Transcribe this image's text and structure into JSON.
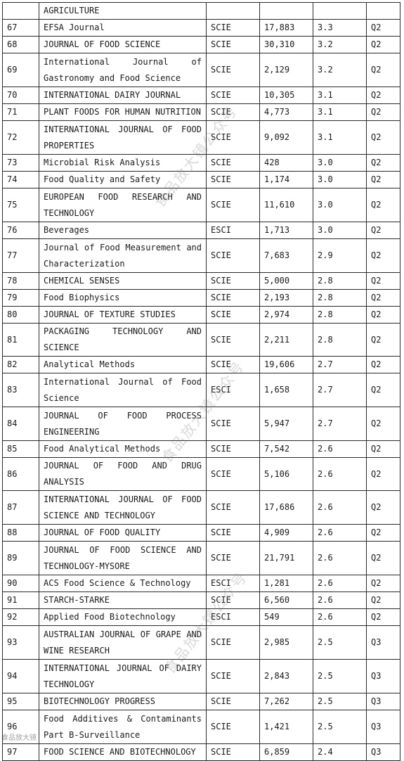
{
  "rows": [
    {
      "rank": "",
      "name": "AGRICULTURE",
      "index": "",
      "cites": "",
      "if": "",
      "q": "",
      "lines": 1
    },
    {
      "rank": "67",
      "name": "EFSA Journal",
      "index": "SCIE",
      "cites": "17,883",
      "if": "3.3",
      "q": "Q2",
      "lines": 1
    },
    {
      "rank": "68",
      "name": "JOURNAL OF FOOD SCIENCE",
      "index": "SCIE",
      "cites": "30,310",
      "if": "3.2",
      "q": "Q2",
      "lines": 1
    },
    {
      "rank": "69",
      "name": "International Journal of Gastronomy and Food Science",
      "index": "SCIE",
      "cites": "2,129",
      "if": "3.2",
      "q": "Q2",
      "lines": 2
    },
    {
      "rank": "70",
      "name": "INTERNATIONAL DAIRY JOURNAL",
      "index": "SCIE",
      "cites": "10,305",
      "if": "3.1",
      "q": "Q2",
      "lines": 1
    },
    {
      "rank": "71",
      "name": "PLANT FOODS FOR HUMAN NUTRITION",
      "index": "SCIE",
      "cites": "4,773",
      "if": "3.1",
      "q": "Q2",
      "lines": 1
    },
    {
      "rank": "72",
      "name": "INTERNATIONAL JOURNAL OF FOOD PROPERTIES",
      "index": "SCIE",
      "cites": "9,092",
      "if": "3.1",
      "q": "Q2",
      "lines": 2
    },
    {
      "rank": "73",
      "name": "Microbial Risk Analysis",
      "index": "SCIE",
      "cites": "428",
      "if": "3.0",
      "q": "Q2",
      "lines": 1
    },
    {
      "rank": "74",
      "name": "Food Quality and Safety",
      "index": "SCIE",
      "cites": "1,174",
      "if": "3.0",
      "q": "Q2",
      "lines": 1
    },
    {
      "rank": "75",
      "name": "EUROPEAN FOOD RESEARCH AND TECHNOLOGY",
      "index": "SCIE",
      "cites": "11,610",
      "if": "3.0",
      "q": "Q2",
      "lines": 2
    },
    {
      "rank": "76",
      "name": "Beverages",
      "index": "ESCI",
      "cites": "1,713",
      "if": "3.0",
      "q": "Q2",
      "lines": 1
    },
    {
      "rank": "77",
      "name": "Journal of Food Measurement and Characterization",
      "index": "SCIE",
      "cites": "7,683",
      "if": "2.9",
      "q": "Q2",
      "lines": 2
    },
    {
      "rank": "78",
      "name": "CHEMICAL SENSES",
      "index": "SCIE",
      "cites": "5,000",
      "if": "2.8",
      "q": "Q2",
      "lines": 1
    },
    {
      "rank": "79",
      "name": "Food Biophysics",
      "index": "SCIE",
      "cites": "2,193",
      "if": "2.8",
      "q": "Q2",
      "lines": 1
    },
    {
      "rank": "80",
      "name": "JOURNAL OF TEXTURE STUDIES",
      "index": "SCIE",
      "cites": "2,974",
      "if": "2.8",
      "q": "Q2",
      "lines": 1
    },
    {
      "rank": "81",
      "name": "PACKAGING TECHNOLOGY AND SCIENCE",
      "index": "SCIE",
      "cites": "2,211",
      "if": "2.8",
      "q": "Q2",
      "lines": 1
    },
    {
      "rank": "82",
      "name": "Analytical Methods",
      "index": "SCIE",
      "cites": "19,606",
      "if": "2.7",
      "q": "Q2",
      "lines": 1
    },
    {
      "rank": "83",
      "name": "International Journal of Food Science",
      "index": "ESCI",
      "cites": "1,658",
      "if": "2.7",
      "q": "Q2",
      "lines": 2
    },
    {
      "rank": "84",
      "name": "JOURNAL OF FOOD PROCESS ENGINEERING",
      "index": "SCIE",
      "cites": "5,947",
      "if": "2.7",
      "q": "Q2",
      "lines": 2
    },
    {
      "rank": "85",
      "name": "Food Analytical Methods",
      "index": "SCIE",
      "cites": "7,542",
      "if": "2.6",
      "q": "Q2",
      "lines": 1
    },
    {
      "rank": "86",
      "name": "JOURNAL OF FOOD AND DRUG ANALYSIS",
      "index": "SCIE",
      "cites": "5,106",
      "if": "2.6",
      "q": "Q2",
      "lines": 1
    },
    {
      "rank": "87",
      "name": "INTERNATIONAL JOURNAL OF FOOD SCIENCE AND TECHNOLOGY",
      "index": "SCIE",
      "cites": "17,686",
      "if": "2.6",
      "q": "Q2",
      "lines": 2
    },
    {
      "rank": "88",
      "name": "JOURNAL OF FOOD QUALITY",
      "index": "SCIE",
      "cites": "4,909",
      "if": "2.6",
      "q": "Q2",
      "lines": 1
    },
    {
      "rank": "89",
      "name": "JOURNAL OF FOOD SCIENCE AND TECHNOLOGY-MYSORE",
      "index": "SCIE",
      "cites": "21,791",
      "if": "2.6",
      "q": "Q2",
      "lines": 2
    },
    {
      "rank": "90",
      "name": "ACS Food Science & Technology",
      "index": "ESCI",
      "cites": "1,281",
      "if": "2.6",
      "q": "Q2",
      "lines": 1
    },
    {
      "rank": "91",
      "name": "STARCH-STARKE",
      "index": "SCIE",
      "cites": "6,560",
      "if": "2.6",
      "q": "Q2",
      "lines": 1
    },
    {
      "rank": "92",
      "name": "Applied Food Biotechnology",
      "index": "ESCI",
      "cites": "549",
      "if": "2.6",
      "q": "Q2",
      "lines": 1
    },
    {
      "rank": "93",
      "name": "AUSTRALIAN JOURNAL OF GRAPE AND WINE RESEARCH",
      "index": "SCIE",
      "cites": "2,985",
      "if": "2.5",
      "q": "Q3",
      "lines": 2
    },
    {
      "rank": "94",
      "name": "INTERNATIONAL JOURNAL OF DAIRY TECHNOLOGY",
      "index": "SCIE",
      "cites": "2,843",
      "if": "2.5",
      "q": "Q3",
      "lines": 2
    },
    {
      "rank": "95",
      "name": "BIOTECHNOLOGY PROGRESS",
      "index": "SCIE",
      "cites": "7,262",
      "if": "2.5",
      "q": "Q3",
      "lines": 1
    },
    {
      "rank": "96",
      "name": "Food Additives & Contaminants Part B-Surveillance",
      "index": "SCIE",
      "cites": "1,421",
      "if": "2.5",
      "q": "Q3",
      "lines": 2
    },
    {
      "rank": "97",
      "name": "FOOD SCIENCE AND BIOTECHNOLOGY",
      "index": "SCIE",
      "cites": "6,859",
      "if": "2.4",
      "q": "Q3",
      "lines": 1
    }
  ],
  "watermark": {
    "text": "食品放大镜公众号"
  },
  "corner_mark": {
    "text": "食品放大镜"
  }
}
